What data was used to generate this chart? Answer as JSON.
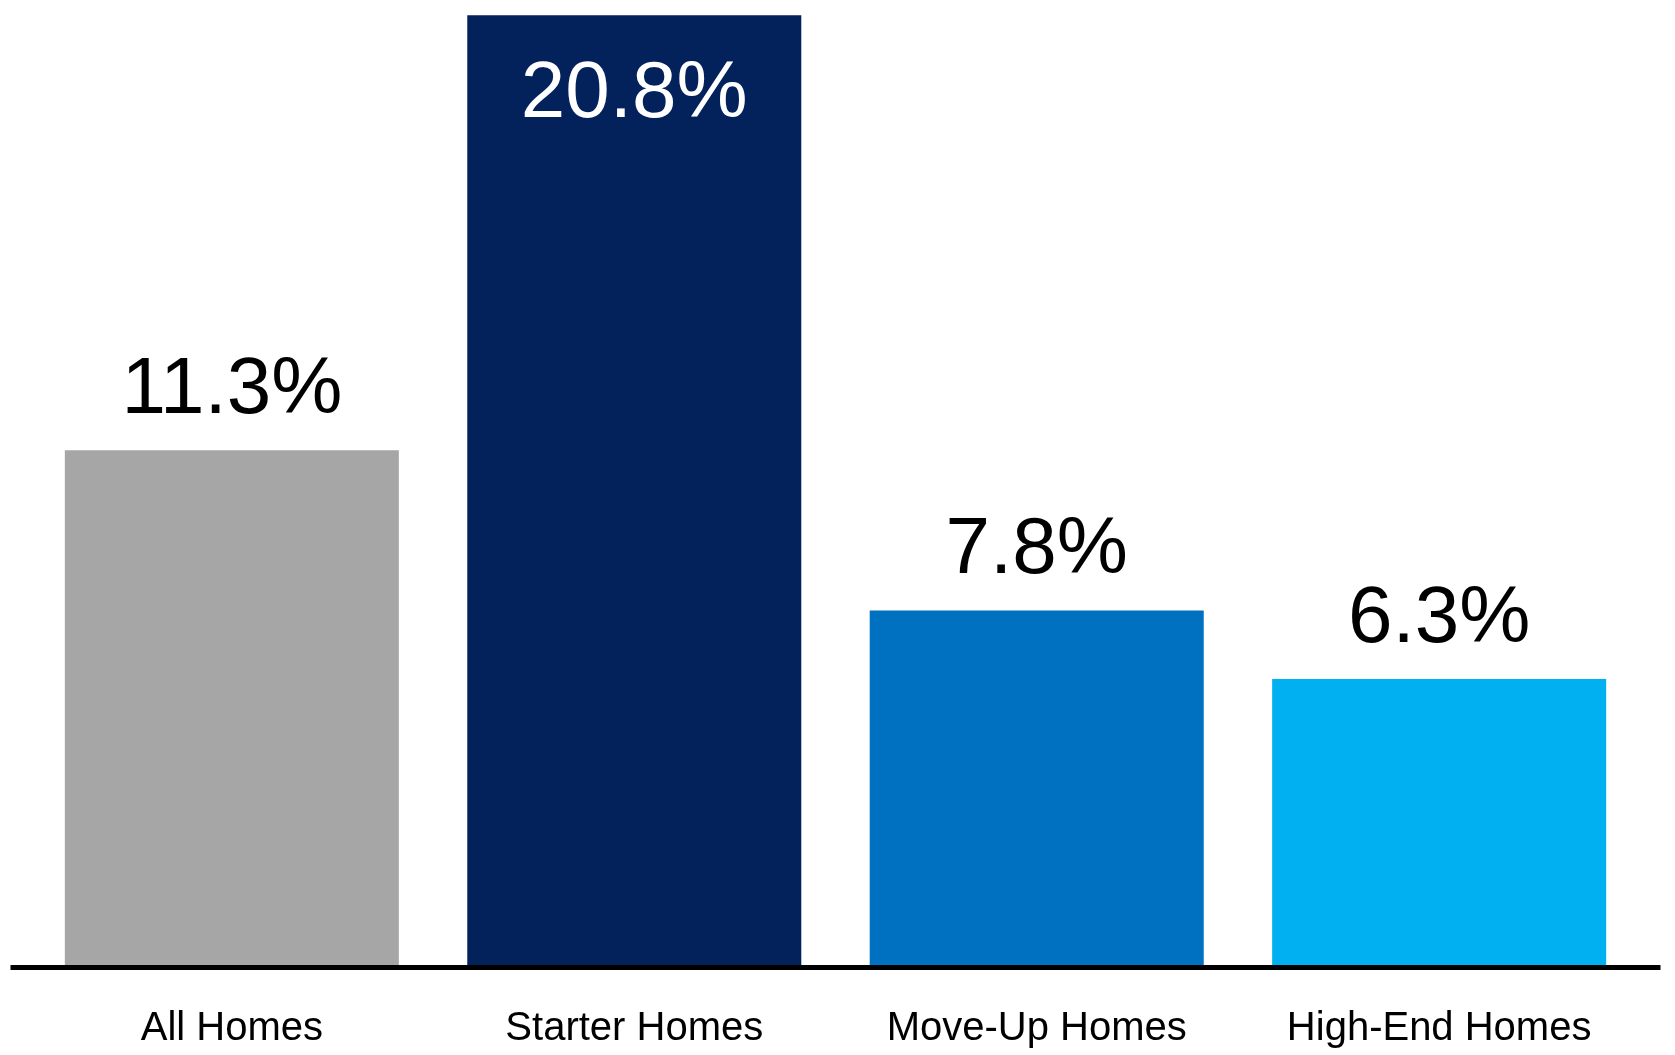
{
  "chart_data": {
    "type": "bar",
    "categories": [
      "All Homes",
      "Starter Homes",
      "Move-Up Homes",
      "High-End Homes"
    ],
    "values": [
      11.3,
      20.8,
      7.8,
      6.3
    ],
    "colors": [
      "#a6a6a6",
      "#03215b",
      "#0070c0",
      "#00b0f0"
    ],
    "value_labels": [
      "11.3%",
      "20.8%",
      "7.8%",
      "6.3%"
    ],
    "grid": false
  }
}
